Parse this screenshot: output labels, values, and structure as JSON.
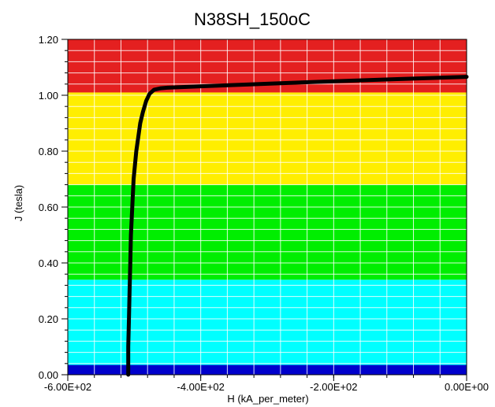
{
  "chart_data": {
    "type": "line",
    "title": "N38SH_150oC",
    "xlabel": "H (kA_per_meter)",
    "ylabel": "J (tesla)",
    "xlim": [
      -600,
      0
    ],
    "ylim": [
      0,
      1.2
    ],
    "x_ticks": [
      -600,
      -400,
      -200,
      0
    ],
    "x_tick_labels": [
      "-6.00E+02",
      "-4.00E+02",
      "-2.00E+02",
      "0.00E+00"
    ],
    "y_ticks": [
      0,
      0.2,
      0.4,
      0.6,
      0.8,
      1.0,
      1.2
    ],
    "y_tick_labels": [
      "0.00",
      "0.20",
      "0.40",
      "0.60",
      "0.80",
      "1.00",
      "1.20"
    ],
    "grid": true,
    "bands": [
      {
        "from": 0.0,
        "to": 0.035,
        "color": "#0000cc"
      },
      {
        "from": 0.035,
        "to": 0.34,
        "color": "#00ffff"
      },
      {
        "from": 0.34,
        "to": 0.68,
        "color": "#00ee00"
      },
      {
        "from": 0.68,
        "to": 1.01,
        "color": "#ffee00"
      },
      {
        "from": 1.01,
        "to": 1.2,
        "color": "#e42020"
      }
    ],
    "series": [
      {
        "color": "#000000",
        "x": [
          -509,
          -509,
          -508,
          -507,
          -506,
          -505,
          -503,
          -501,
          -499,
          -497,
          -494,
          -491,
          -487,
          -482,
          -477,
          -470,
          -460,
          -450,
          -400,
          -300,
          -200,
          -100,
          0
        ],
        "y": [
          0.0,
          0.1,
          0.2,
          0.3,
          0.4,
          0.5,
          0.6,
          0.7,
          0.75,
          0.8,
          0.85,
          0.9,
          0.94,
          0.98,
          1.005,
          1.02,
          1.025,
          1.027,
          1.032,
          1.041,
          1.05,
          1.058,
          1.066
        ]
      }
    ]
  }
}
